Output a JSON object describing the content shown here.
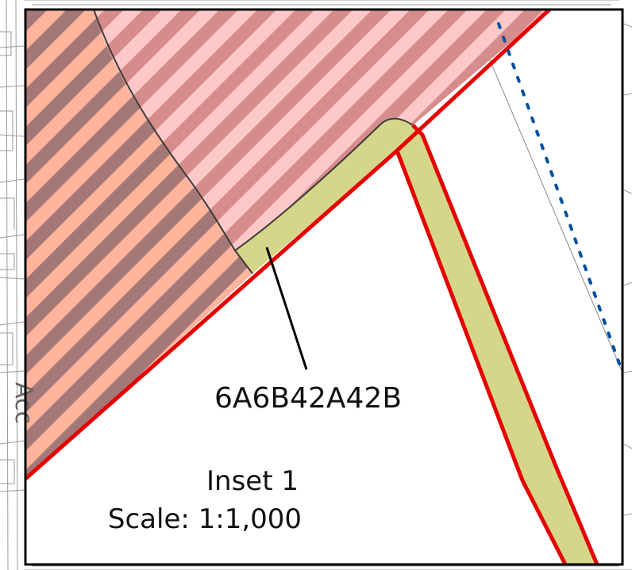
{
  "map": {
    "parcel_label": "6A6B42A42B",
    "inset_title": "Inset 1",
    "scale_text": "Scale: 1:1,000",
    "road_label_fragment": "Acc"
  },
  "colors": {
    "boundary_red": "#e60000",
    "strip_fill": "#d6d68a",
    "hatch_pink_light": "#ffc8c8",
    "hatch_pink_dark": "#d78c8c",
    "hatch_orange": "#ffb49b",
    "hatch_brown": "#a57878",
    "dotted_line_blue": "#0050a0",
    "background_basemap_lines": "#9a9a9a",
    "frame": "#000000"
  }
}
